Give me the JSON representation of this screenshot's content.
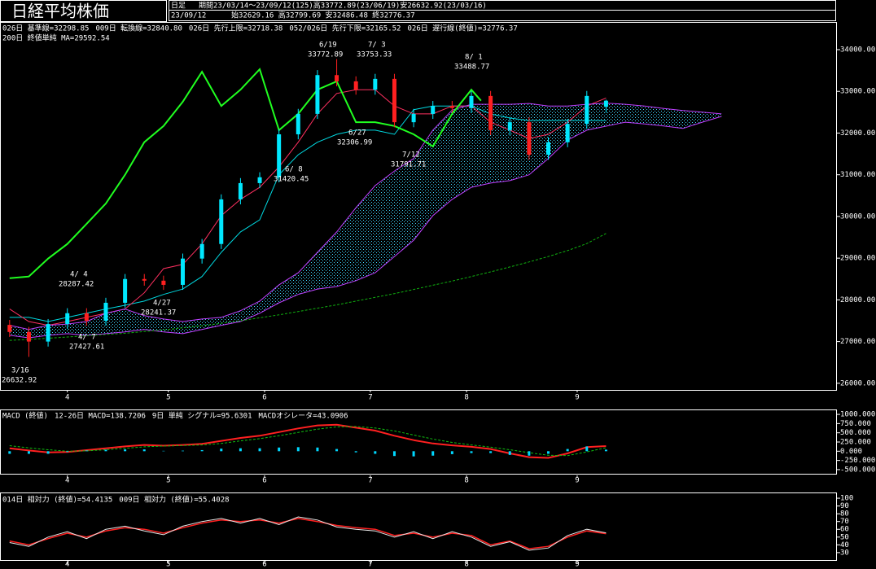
{
  "header": {
    "title": "日経平均株価",
    "timeframe": "日足",
    "period": "期間23/03/14〜23/09/12(125)高33772.89(23/06/19)安26632.92(23/03/16)",
    "date": "23/09/12",
    "ohlc": "始32629.16 高32799.69 安32486.48 終32776.37"
  },
  "chart_data": [
    {
      "type": "candlestick",
      "x": [
        0,
        4,
        8,
        12,
        16,
        20,
        24,
        28,
        32,
        36,
        40,
        44,
        48,
        52,
        56,
        60,
        64,
        68,
        72,
        76,
        80,
        84,
        88,
        92,
        96,
        100,
        104,
        108,
        112,
        116,
        120,
        124
      ],
      "open": [
        27400,
        27230,
        27000,
        27420,
        27680,
        27500,
        27930,
        28500,
        28460,
        28360,
        28990,
        29340,
        30410,
        30800,
        30940,
        31970,
        32460,
        33390,
        33240,
        33040,
        33300,
        32260,
        32460,
        32650,
        32600,
        32890,
        32070,
        32260,
        31480,
        31780,
        32220,
        32629.16
      ],
      "high": [
        27520,
        27350,
        27540,
        27800,
        27800,
        28050,
        28620,
        28620,
        28580,
        29110,
        29460,
        30530,
        30920,
        31060,
        32090,
        32580,
        33510,
        33772.89,
        33360,
        33420,
        33420,
        32580,
        32770,
        32770,
        33010,
        33010,
        32380,
        32380,
        31900,
        32340,
        33010,
        32799.69
      ],
      "low": [
        27110,
        26632.92,
        26880,
        27300,
        27380,
        27380,
        27810,
        28340,
        28240,
        28240,
        28870,
        29220,
        30290,
        30680,
        30820,
        31850,
        32340,
        33120,
        32920,
        32920,
        32140,
        32140,
        32340,
        32480,
        32480,
        31950,
        31950,
        31360,
        31360,
        31660,
        32100,
        32486.48
      ],
      "close": [
        27230,
        27000,
        27420,
        27680,
        27500,
        27930,
        28500,
        28460,
        28360,
        28990,
        29340,
        30410,
        30800,
        30940,
        31970,
        32460,
        33390,
        33240,
        33040,
        33300,
        32260,
        32460,
        32650,
        32600,
        32890,
        32070,
        32260,
        31480,
        31780,
        32220,
        32890,
        32776.37
      ],
      "up_color": "#00e8ff",
      "down_color": "#ff2020",
      "cloud_color": "#40d8ff",
      "series": [
        {
          "name": "026日 基準線=32298.85",
          "color": "#00d8e0",
          "values": [
            27580,
            27580,
            27480,
            27580,
            27680,
            27780,
            27870,
            27970,
            28130,
            28260,
            28560,
            29140,
            29630,
            29920,
            31000,
            31480,
            31780,
            31970,
            32070,
            32070,
            31970,
            32560,
            32650,
            32650,
            32650,
            32460,
            32360,
            32300,
            32300,
            32300,
            32300,
            32298.85
          ]
        },
        {
          "name": "009日 転換線=32840.80",
          "color": "#ff3060",
          "values": [
            27780,
            27480,
            27390,
            27480,
            27580,
            27680,
            27780,
            28170,
            28750,
            28850,
            29340,
            30020,
            30410,
            30700,
            31190,
            31780,
            32460,
            32950,
            33040,
            33040,
            32650,
            32460,
            32460,
            32650,
            32650,
            32260,
            32070,
            31870,
            31970,
            32260,
            32650,
            32840.8
          ]
        },
        {
          "name": "026日 先行上限=32718.38",
          "color": "#c040ff",
          "x": [
            0,
            4,
            8,
            12,
            16,
            20,
            24,
            28,
            32,
            36,
            40,
            44,
            48,
            52,
            56,
            60,
            64,
            68,
            72,
            76,
            80,
            84,
            88,
            92,
            96,
            100,
            104,
            108,
            112,
            116,
            120,
            124,
            128,
            132,
            136,
            140,
            144,
            148
          ],
          "values": [
            27390,
            27290,
            27390,
            27420,
            27480,
            27680,
            27780,
            27620,
            27540,
            27480,
            27540,
            27580,
            27740,
            27970,
            28360,
            28650,
            29140,
            29630,
            30210,
            30740,
            31090,
            31390,
            32070,
            32550,
            32690,
            32690,
            32690,
            32710,
            32650,
            32650,
            32690,
            32718.38,
            32690,
            32650,
            32590,
            32540,
            32500,
            32460
          ]
        },
        {
          "name": "052/026日 先行下限=32165.52",
          "color": "#c040ff",
          "x": [
            0,
            4,
            8,
            12,
            16,
            20,
            24,
            28,
            32,
            36,
            40,
            44,
            48,
            52,
            56,
            60,
            64,
            68,
            72,
            76,
            80,
            84,
            88,
            92,
            96,
            100,
            104,
            108,
            112,
            116,
            120,
            124,
            128,
            132,
            136,
            140,
            144,
            148
          ],
          "values": [
            27150,
            27090,
            27150,
            27190,
            27150,
            27190,
            27230,
            27290,
            27230,
            27190,
            27290,
            27390,
            27480,
            27680,
            27930,
            28130,
            28260,
            28320,
            28460,
            28650,
            29040,
            29430,
            30020,
            30410,
            30700,
            30800,
            30860,
            31000,
            31390,
            31830,
            32070,
            32165.52,
            32260,
            32220,
            32170,
            32110,
            32260,
            32400
          ]
        },
        {
          "name": "026日 遅行線(終値)=32776.37",
          "color": "#20ff20",
          "width": 2,
          "x": [
            0,
            4,
            8,
            12,
            16,
            20,
            24,
            28,
            32,
            36,
            40,
            44,
            48,
            52,
            56,
            60,
            64,
            68,
            72,
            76,
            80,
            84,
            88,
            92,
            96,
            98
          ],
          "values": [
            28520,
            28560,
            28990,
            29340,
            29820,
            30310,
            31000,
            31780,
            32170,
            32750,
            33470,
            32650,
            33040,
            33530,
            32070,
            32460,
            33040,
            33240,
            32260,
            32260,
            32170,
            31970,
            31680,
            32460,
            33040,
            32776.37
          ]
        },
        {
          "name": "200日 終値単純 MA=29592.54",
          "color": "#10b010",
          "style": "dash",
          "values": [
            27030,
            27050,
            27080,
            27110,
            27140,
            27170,
            27200,
            27240,
            27280,
            27330,
            27380,
            27440,
            27500,
            27570,
            27640,
            27720,
            27800,
            27880,
            27970,
            28060,
            28150,
            28250,
            28350,
            28450,
            28560,
            28670,
            28790,
            28910,
            29040,
            29180,
            29350,
            29592.54
          ]
        }
      ],
      "annotations": [
        {
          "date": "3/16",
          "value": 26632.92,
          "color": "#a0ffff"
        },
        {
          "date": "4/ 4",
          "value": 28287.42,
          "color": "#ff3030"
        },
        {
          "date": "4/27",
          "value": 28241.37,
          "color": "#40e0ff"
        },
        {
          "date": "4/ 7",
          "value": 27427.61,
          "color": "#40e0ff"
        },
        {
          "date": "6/ 8",
          "value": 31420.45,
          "color": "#40e0ff"
        },
        {
          "date": "6/19",
          "value": 33772.89,
          "color": "#ff3030"
        },
        {
          "date": "6/27",
          "value": 32306.99,
          "color": "#40e0ff"
        },
        {
          "date": "7/ 3",
          "value": 33753.33,
          "color": "#ff3030"
        },
        {
          "date": "7/12",
          "value": 31791.71,
          "color": "#40e0ff"
        },
        {
          "date": "8/ 1",
          "value": 33488.77,
          "color": "#ff3030"
        }
      ],
      "xlim": [
        -2,
        172
      ],
      "xticks": [
        {
          "value": 12,
          "label": "4"
        },
        {
          "value": 33,
          "label": "5"
        },
        {
          "value": 53,
          "label": "6"
        },
        {
          "value": 75,
          "label": "7"
        },
        {
          "value": 95,
          "label": "8"
        },
        {
          "value": 118,
          "label": "9"
        }
      ],
      "ylim": [
        25860,
        34410
      ],
      "yticks": [
        {
          "value": 26000,
          "label": "26000.00"
        },
        {
          "value": 27000,
          "label": "27000.00"
        },
        {
          "value": 28000,
          "label": "28000.00"
        },
        {
          "value": 29000,
          "label": "29000.00"
        },
        {
          "value": 30000,
          "label": "30000.00"
        },
        {
          "value": 31000,
          "label": "31000.00"
        },
        {
          "value": 32000,
          "label": "32000.00"
        },
        {
          "value": 33000,
          "label": "33000.00"
        },
        {
          "value": 34000,
          "label": "34000.00"
        }
      ]
    },
    {
      "type": "line",
      "title": "MACD (終値)",
      "x": [
        0,
        4,
        8,
        12,
        16,
        20,
        24,
        28,
        32,
        36,
        40,
        44,
        48,
        52,
        56,
        60,
        64,
        68,
        72,
        76,
        80,
        84,
        88,
        92,
        96,
        100,
        104,
        108,
        112,
        116,
        120,
        124
      ],
      "series": [
        {
          "name": "12-26日 MACD=138.7206",
          "color": "#ff2020",
          "width": 2,
          "values": [
            80,
            20,
            -30,
            -20,
            30,
            80,
            130,
            170,
            150,
            170,
            200,
            280,
            360,
            420,
            520,
            620,
            700,
            720,
            640,
            560,
            420,
            300,
            210,
            160,
            120,
            60,
            -60,
            -160,
            -180,
            -60,
            110,
            138.72
          ]
        },
        {
          "name": "9日 単純 シグナル=95.6301",
          "color": "#10c010",
          "style": "dash",
          "values": [
            150,
            90,
            40,
            0,
            10,
            40,
            80,
            120,
            140,
            155,
            170,
            210,
            280,
            340,
            420,
            510,
            600,
            660,
            670,
            630,
            550,
            440,
            330,
            240,
            170,
            110,
            40,
            -40,
            -110,
            -120,
            -20,
            95.63
          ]
        },
        {
          "name": "MACDオシレータ=43.0906",
          "color": "#00d8ff",
          "type": "bar",
          "values": [
            -70,
            -70,
            -70,
            -20,
            20,
            40,
            50,
            50,
            10,
            15,
            30,
            70,
            80,
            80,
            100,
            110,
            100,
            60,
            -30,
            -70,
            -130,
            -140,
            -120,
            -80,
            -50,
            -50,
            -100,
            -120,
            -70,
            60,
            130,
            43.09
          ]
        }
      ],
      "xlim": [
        -2,
        172
      ],
      "xticks": [
        {
          "value": 12,
          "label": "4"
        },
        {
          "value": 33,
          "label": "5"
        },
        {
          "value": 53,
          "label": "6"
        },
        {
          "value": 75,
          "label": "7"
        },
        {
          "value": 95,
          "label": "8"
        },
        {
          "value": 118,
          "label": "9"
        }
      ],
      "ylim": [
        -634,
        1134
      ],
      "yticks": [
        {
          "value": 1000,
          "label": "1000.000"
        },
        {
          "value": 750,
          "label": "750.000"
        },
        {
          "value": 500,
          "label": "500.000"
        },
        {
          "value": 250,
          "label": "250.000"
        },
        {
          "value": 0,
          "label": "0.000"
        },
        {
          "value": -250,
          "label": "-250.000"
        },
        {
          "value": -500,
          "label": "-500.000"
        }
      ]
    },
    {
      "type": "line",
      "x": [
        0,
        4,
        8,
        12,
        16,
        20,
        24,
        28,
        32,
        36,
        40,
        44,
        48,
        52,
        56,
        60,
        64,
        68,
        72,
        76,
        80,
        84,
        88,
        92,
        96,
        100,
        104,
        108,
        112,
        116,
        120,
        124
      ],
      "series": [
        {
          "name": "014日 相対力 (終値)=54.4135",
          "color": "#ff2020",
          "width": 1.5,
          "values": [
            45,
            40,
            48,
            55,
            50,
            58,
            62,
            60,
            55,
            62,
            68,
            72,
            70,
            72,
            68,
            74,
            70,
            65,
            62,
            60,
            52,
            55,
            50,
            55,
            52,
            40,
            45,
            35,
            38,
            50,
            58,
            54.41
          ]
        },
        {
          "name": "009日 相対力 (終値)=55.4028",
          "color": "#e8e8e8",
          "values": [
            43,
            38,
            50,
            57,
            48,
            60,
            64,
            58,
            53,
            64,
            70,
            74,
            68,
            74,
            66,
            76,
            72,
            63,
            60,
            58,
            50,
            57,
            48,
            57,
            50,
            38,
            44,
            33,
            36,
            52,
            60,
            55.4
          ]
        }
      ],
      "xlim": [
        -2,
        172
      ],
      "xticks": [
        {
          "value": 12,
          "label": "4"
        },
        {
          "value": 33,
          "label": "5"
        },
        {
          "value": 53,
          "label": "6"
        },
        {
          "value": 75,
          "label": "7"
        },
        {
          "value": 95,
          "label": "8"
        },
        {
          "value": 118,
          "label": "9"
        }
      ],
      "ylim": [
        19.4,
        107.4
      ],
      "yticks": [
        100,
        90,
        80,
        70,
        60,
        50,
        40,
        30
      ]
    }
  ]
}
